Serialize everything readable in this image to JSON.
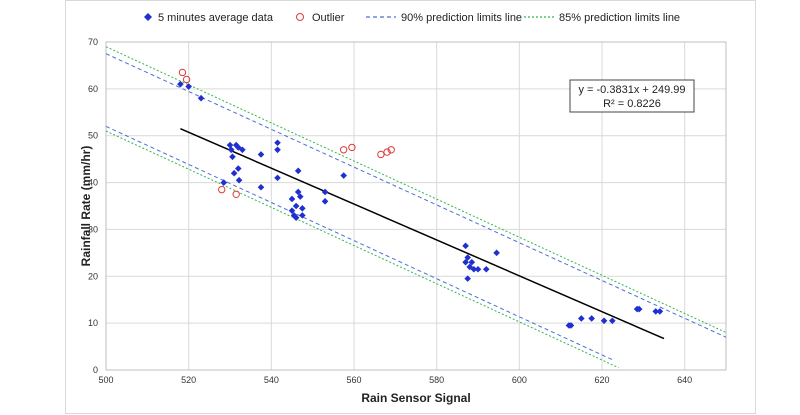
{
  "chart_data": {
    "type": "scatter",
    "xlabel": "Rain Sensor Signal",
    "ylabel": "Rainfall Rate (mm/hr)",
    "xlim": [
      500,
      650
    ],
    "ylim": [
      0,
      70
    ],
    "xticks": [
      500,
      520,
      540,
      560,
      580,
      600,
      620,
      640
    ],
    "yticks": [
      0,
      10,
      20,
      30,
      40,
      50,
      60,
      70
    ],
    "grid": true,
    "legend_position": "top",
    "equation": "y = -0.3831x + 249.99",
    "r_squared": "R² = 0.8226",
    "series": [
      {
        "name": "5 minutes average data",
        "kind": "scatter",
        "marker": "diamond",
        "color": "#1f2fd1",
        "points": [
          [
            518,
            61
          ],
          [
            520,
            60.5
          ],
          [
            523,
            58
          ],
          [
            528.5,
            40
          ],
          [
            530,
            48
          ],
          [
            530.3,
            47
          ],
          [
            530.6,
            45.5
          ],
          [
            531,
            42
          ],
          [
            531.5,
            48
          ],
          [
            532,
            47.5
          ],
          [
            532,
            43
          ],
          [
            532.2,
            40.5
          ],
          [
            533,
            47
          ],
          [
            537.5,
            46
          ],
          [
            537.5,
            39
          ],
          [
            541.5,
            48.5
          ],
          [
            541.5,
            47
          ],
          [
            541.5,
            41
          ],
          [
            545,
            36.5
          ],
          [
            545,
            34
          ],
          [
            545.5,
            33
          ],
          [
            546,
            32.5
          ],
          [
            546,
            35
          ],
          [
            546.5,
            38
          ],
          [
            546.5,
            42.5
          ],
          [
            547,
            37
          ],
          [
            547.5,
            34.5
          ],
          [
            547.5,
            33
          ],
          [
            553,
            38
          ],
          [
            553,
            36
          ],
          [
            557.5,
            41.5
          ],
          [
            587,
            26.5
          ],
          [
            587,
            23
          ],
          [
            587.5,
            19.5
          ],
          [
            587.5,
            24
          ],
          [
            588,
            22
          ],
          [
            588.5,
            23
          ],
          [
            589,
            21.5
          ],
          [
            590,
            21.5
          ],
          [
            592,
            21.5
          ],
          [
            594.5,
            25
          ],
          [
            612,
            9.5
          ],
          [
            612.5,
            9.5
          ],
          [
            615,
            11
          ],
          [
            617.5,
            11
          ],
          [
            620.5,
            10.5
          ],
          [
            622.5,
            10.5
          ],
          [
            628.5,
            13
          ],
          [
            629,
            13
          ],
          [
            633,
            12.5
          ],
          [
            634,
            12.5
          ]
        ]
      },
      {
        "name": "Outlier",
        "kind": "scatter",
        "marker": "circle",
        "color": "#e03a3a",
        "points": [
          [
            518.5,
            63.5
          ],
          [
            519.5,
            62
          ],
          [
            528,
            38.5
          ],
          [
            531.5,
            37.5
          ],
          [
            557.5,
            47
          ],
          [
            559.5,
            47.5
          ],
          [
            566.5,
            46
          ],
          [
            568,
            46.5
          ],
          [
            569,
            47
          ]
        ]
      },
      {
        "name": "Regression line",
        "kind": "line",
        "color": "#000000",
        "style": "solid",
        "x": [
          518,
          635
        ],
        "y": [
          51.5,
          6.7
        ]
      },
      {
        "name": "90% prediction limits line",
        "kind": "line",
        "color": "#4a6fd6",
        "style": "dashed",
        "lines": [
          {
            "x": [
              500,
              650
            ],
            "y": [
              67.5,
              7
            ]
          },
          {
            "x": [
              500,
              623
            ],
            "y": [
              52,
              2
            ]
          }
        ]
      },
      {
        "name": "85% prediction limits line",
        "kind": "line",
        "color": "#2db84a",
        "style": "dotted",
        "lines": [
          {
            "x": [
              500,
              650
            ],
            "y": [
              69,
              8
            ]
          },
          {
            "x": [
              500,
              624
            ],
            "y": [
              51,
              0.5
            ]
          }
        ]
      }
    ]
  }
}
